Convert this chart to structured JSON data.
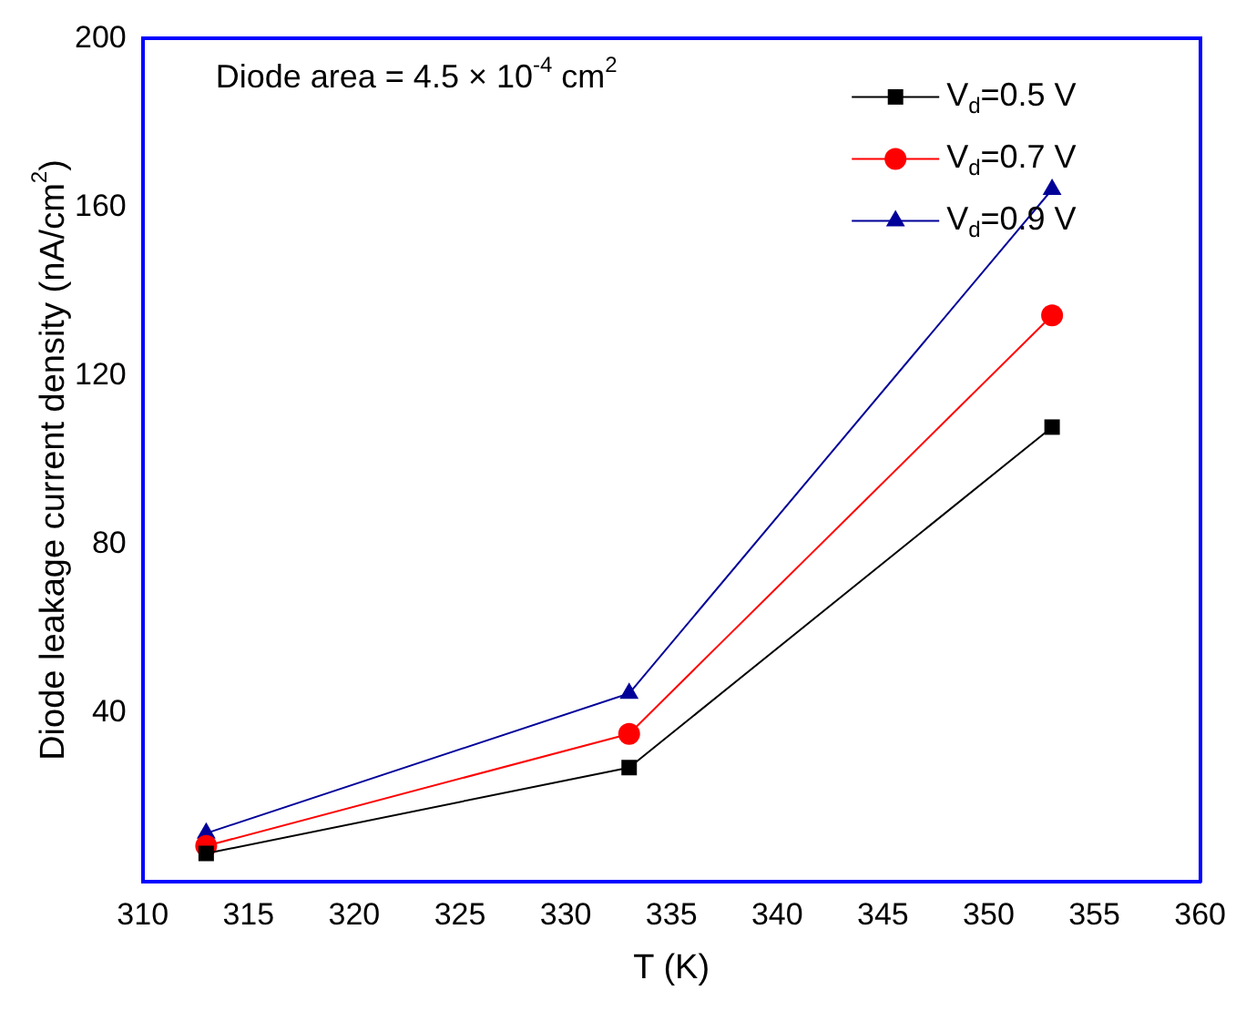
{
  "chart_data": {
    "type": "line",
    "xlabel": "T (K)",
    "ylabel": "Diode leakage current density (nA/cm$^{2}$)",
    "x": [
      313,
      333,
      353
    ],
    "series": [
      {
        "name": "V$_{d}$=0.5 V",
        "color": "#000000",
        "marker": "square",
        "values": [
          6.6,
          27,
          107.8
        ]
      },
      {
        "name": "V$_{d}$=0.7 V",
        "color": "#ff0000",
        "marker": "circle",
        "values": [
          8.4,
          35,
          134.3
        ]
      },
      {
        "name": "V$_{d}$=0.9 V",
        "color": "#000099",
        "marker": "triangle",
        "values": [
          11.4,
          44.6,
          164.2
        ]
      }
    ],
    "xlim": [
      310,
      360
    ],
    "xticks": [
      310,
      315,
      320,
      325,
      330,
      335,
      340,
      345,
      350,
      355,
      360
    ],
    "ylim": [
      0,
      200
    ],
    "yticks": [
      40,
      80,
      120,
      160,
      200
    ],
    "annotations": [
      "Diode area = 4.5 × 10$^{-4}$ cm$^{2}$"
    ],
    "legend": "top right",
    "grid": false,
    "line_style": "solid"
  }
}
